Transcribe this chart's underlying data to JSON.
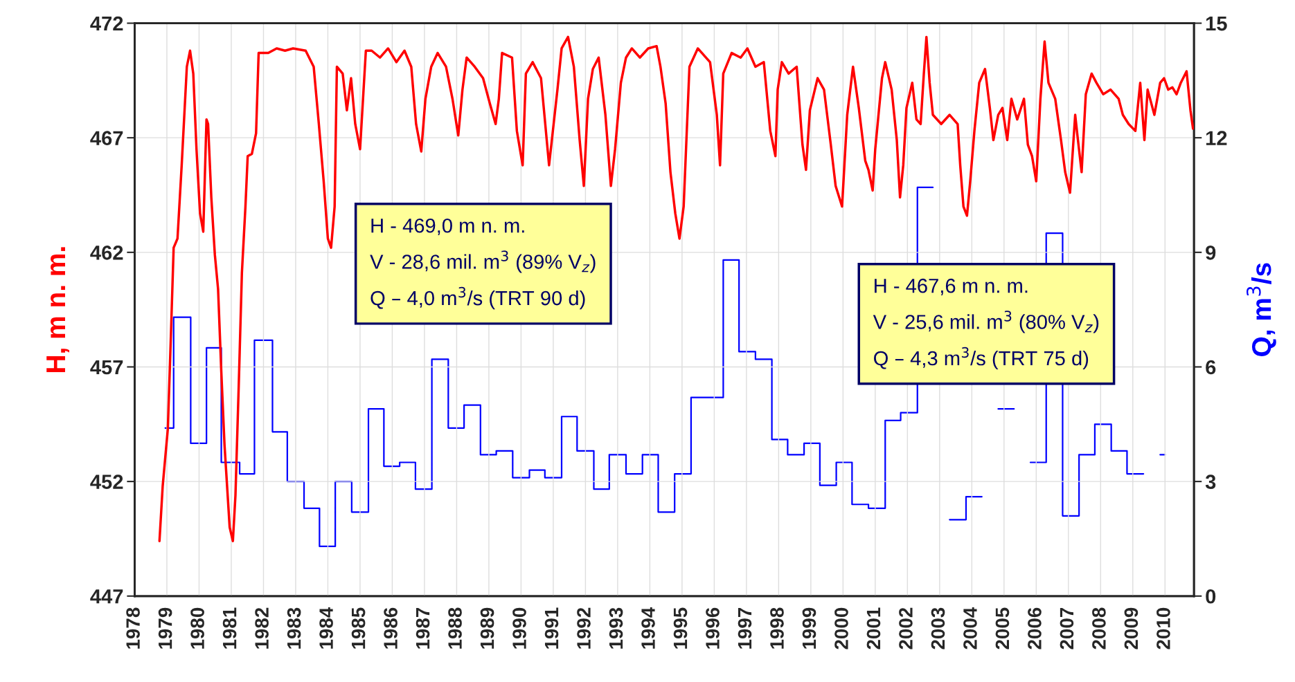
{
  "chart_data": {
    "type": "line",
    "ylabel": "H, m n. m.",
    "y2label": "Q, m$^{3}$/s",
    "annotations": [
      "H - 469,0 m n. m.\nV - 28,6 mil. m$^{3}$ (89% V$_{z}$)\nQ – 4,0 m$^{3}$/s (TRT 90 d)",
      "H - 467,6 m n. m.\nV - 25,6 mil. m$^{3}$ (80% V$_{z}$)\nQ – 4,3 m$^{3}$/s (TRT 75 d)"
    ],
    "xlim": [
      1978,
      2010.9
    ],
    "xticks": [
      1978,
      1979,
      1980,
      1981,
      1982,
      1983,
      1984,
      1985,
      1986,
      1987,
      1988,
      1989,
      1990,
      1991,
      1992,
      1993,
      1994,
      1995,
      1996,
      1997,
      1998,
      1999,
      2000,
      2001,
      2002,
      2003,
      2004,
      2005,
      2006,
      2007,
      2008,
      2009,
      2010
    ],
    "ylim": [
      447,
      472
    ],
    "yticks": [
      447,
      452,
      457,
      462,
      467,
      472
    ],
    "y2lim": [
      0,
      15
    ],
    "y2ticks": [
      0,
      3,
      6,
      9,
      12,
      15
    ],
    "grid": true,
    "legend": false,
    "series": [
      {
        "color": "#ff0000",
        "x": [
          1978.77,
          1978.87,
          1979.03,
          1979.13,
          1979.21,
          1979.33,
          1979.46,
          1979.62,
          1979.72,
          1979.82,
          1979.92,
          1980.03,
          1980.13,
          1980.23,
          1980.28,
          1980.38,
          1980.49,
          1980.59,
          1980.69,
          1980.79,
          1980.95,
          1981.05,
          1981.13,
          1981.23,
          1981.33,
          1981.44,
          1981.51,
          1981.64,
          1981.77,
          1981.85,
          1982.15,
          1982.41,
          1982.67,
          1982.92,
          1983.31,
          1983.56,
          1983.72,
          1983.87,
          1984.0,
          1984.1,
          1984.21,
          1984.28,
          1984.46,
          1984.59,
          1984.72,
          1984.85,
          1985.0,
          1985.18,
          1985.36,
          1985.62,
          1985.87,
          1986.13,
          1986.38,
          1986.59,
          1986.74,
          1986.9,
          1987.03,
          1987.21,
          1987.41,
          1987.67,
          1987.87,
          1988.05,
          1988.18,
          1988.31,
          1988.56,
          1988.82,
          1989.03,
          1989.21,
          1989.31,
          1989.41,
          1989.72,
          1989.87,
          1990.05,
          1990.15,
          1990.36,
          1990.62,
          1990.87,
          1991.13,
          1991.26,
          1991.46,
          1991.64,
          1991.82,
          1991.95,
          1992.08,
          1992.23,
          1992.41,
          1992.62,
          1992.79,
          1992.92,
          1993.1,
          1993.26,
          1993.44,
          1993.69,
          1993.95,
          1994.21,
          1994.33,
          1994.49,
          1994.64,
          1994.79,
          1994.92,
          1995.05,
          1995.23,
          1995.49,
          1995.87,
          1996.08,
          1996.18,
          1996.28,
          1996.54,
          1996.82,
          1997.03,
          1997.28,
          1997.54,
          1997.74,
          1997.9,
          1997.97,
          1998.1,
          1998.31,
          1998.56,
          1998.74,
          1998.85,
          1998.97,
          1999.21,
          1999.41,
          1999.62,
          1999.77,
          1999.97,
          2000.13,
          2000.31,
          2000.49,
          2000.69,
          2000.79,
          2000.92,
          2001.0,
          2001.21,
          2001.31,
          2001.51,
          2001.67,
          2001.77,
          2001.87,
          2001.97,
          2002.15,
          2002.28,
          2002.41,
          2002.51,
          2002.59,
          2002.69,
          2002.79,
          2003.05,
          2003.31,
          2003.56,
          2003.64,
          2003.74,
          2003.85,
          2003.95,
          2004.08,
          2004.23,
          2004.41,
          2004.56,
          2004.67,
          2004.82,
          2004.95,
          2005.1,
          2005.23,
          2005.41,
          2005.62,
          2005.74,
          2005.87,
          2006.0,
          2006.13,
          2006.26,
          2006.38,
          2006.59,
          2006.77,
          2006.9,
          2007.05,
          2007.21,
          2007.28,
          2007.41,
          2007.54,
          2007.72,
          2007.87,
          2008.08,
          2008.31,
          2008.56,
          2008.69,
          2008.87,
          2009.08,
          2009.23,
          2009.36,
          2009.46,
          2009.67,
          2009.85,
          2009.97,
          2010.1,
          2010.23,
          2010.36,
          2010.49,
          2010.67,
          2010.79,
          2010.87
        ],
        "values": [
          449.4,
          451.8,
          454.3,
          458.6,
          462.2,
          462.6,
          465.8,
          470.1,
          470.8,
          469.8,
          466.5,
          463.7,
          462.9,
          467.8,
          467.6,
          464.4,
          461.9,
          460.4,
          456.8,
          453.6,
          450.0,
          449.4,
          451.4,
          456.1,
          461.1,
          464.0,
          466.2,
          466.3,
          467.2,
          470.7,
          470.7,
          470.9,
          470.8,
          470.9,
          470.8,
          470.1,
          467.6,
          465.1,
          462.6,
          462.2,
          464.0,
          470.1,
          469.8,
          468.2,
          469.6,
          467.6,
          466.5,
          470.8,
          470.8,
          470.5,
          470.9,
          470.3,
          470.8,
          470.1,
          467.6,
          466.4,
          468.7,
          470.1,
          470.7,
          470.1,
          468.7,
          467.1,
          469.1,
          470.5,
          470.1,
          469.6,
          468.5,
          467.6,
          468.7,
          470.7,
          470.5,
          467.3,
          465.8,
          469.8,
          470.3,
          469.6,
          465.8,
          469.1,
          470.9,
          471.4,
          470.1,
          466.9,
          464.9,
          468.7,
          470.0,
          470.5,
          468.0,
          464.9,
          466.5,
          469.4,
          470.5,
          470.9,
          470.5,
          470.9,
          471.0,
          470.1,
          468.5,
          465.5,
          463.7,
          462.6,
          464.0,
          470.1,
          470.9,
          470.3,
          468.0,
          465.8,
          469.8,
          470.7,
          470.5,
          470.9,
          470.1,
          470.3,
          467.3,
          466.2,
          469.1,
          470.3,
          469.8,
          470.1,
          466.7,
          465.6,
          468.2,
          469.6,
          469.1,
          466.7,
          464.9,
          464.0,
          468.0,
          470.1,
          468.3,
          466.0,
          465.6,
          464.7,
          466.5,
          469.6,
          470.3,
          469.1,
          466.9,
          464.4,
          465.8,
          468.3,
          469.4,
          467.8,
          467.6,
          469.8,
          471.4,
          469.4,
          468.0,
          467.6,
          468.0,
          467.6,
          465.8,
          464.0,
          463.6,
          465.1,
          467.3,
          469.4,
          470.0,
          468.3,
          466.9,
          468.0,
          468.3,
          466.9,
          468.7,
          467.8,
          468.7,
          466.7,
          466.2,
          465.1,
          468.7,
          471.2,
          469.4,
          468.7,
          466.9,
          465.5,
          464.6,
          468.0,
          467.1,
          465.5,
          468.9,
          469.8,
          469.4,
          468.9,
          469.1,
          468.7,
          468.0,
          467.6,
          467.3,
          469.4,
          466.9,
          469.1,
          468.0,
          469.4,
          469.6,
          469.1,
          469.2,
          468.9,
          469.4,
          469.9,
          468.2,
          467.4
        ]
      },
      {
        "type": "step",
        "axis": "y2",
        "color": "#0000ff",
        "x": [
          1978.95,
          1979.21,
          1979.74,
          1980.23,
          1980.69,
          1981.26,
          1981.72,
          1982.28,
          1982.74,
          1983.26,
          1983.74,
          1984.23,
          1984.74,
          1985.26,
          1985.74,
          1986.23,
          1986.72,
          1987.23,
          1987.74,
          1988.23,
          1988.74,
          1989.23,
          1989.74,
          1990.26,
          1990.74,
          1991.26,
          1991.74,
          1992.26,
          1992.74,
          1993.26,
          1993.77,
          1994.26,
          1994.77,
          1995.28,
          1996.28,
          1996.77,
          1997.28,
          1997.79,
          1998.28,
          1998.79,
          1999.28,
          1999.79,
          2000.28,
          2000.79,
          2001.31,
          2001.79,
          2002.31,
          2002.79,
          2003.31,
          2003.82,
          2004.31,
          2004.82,
          2005.31,
          2005.82,
          2006.31,
          2006.82,
          2007.33,
          2007.82,
          2008.33,
          2008.82,
          2009.33,
          2009.85,
          2010.0
        ],
        "values": [
          4.4,
          7.3,
          4.0,
          6.5,
          3.5,
          3.2,
          6.7,
          4.3,
          3.0,
          2.3,
          1.3,
          3.0,
          2.2,
          4.9,
          3.4,
          3.5,
          2.8,
          6.2,
          4.4,
          5.0,
          3.7,
          3.8,
          3.1,
          3.3,
          3.1,
          4.7,
          3.8,
          2.8,
          3.7,
          3.2,
          3.7,
          2.2,
          3.2,
          5.2,
          8.8,
          6.4,
          6.2,
          4.1,
          3.7,
          4.0,
          2.9,
          3.5,
          2.4,
          2.3,
          4.6,
          4.8,
          10.7,
          null,
          2.0,
          2.6,
          null,
          4.9,
          null,
          3.5,
          9.5,
          2.1,
          3.7,
          4.5,
          3.8,
          3.2,
          null,
          3.7,
          3.7
        ]
      }
    ]
  }
}
